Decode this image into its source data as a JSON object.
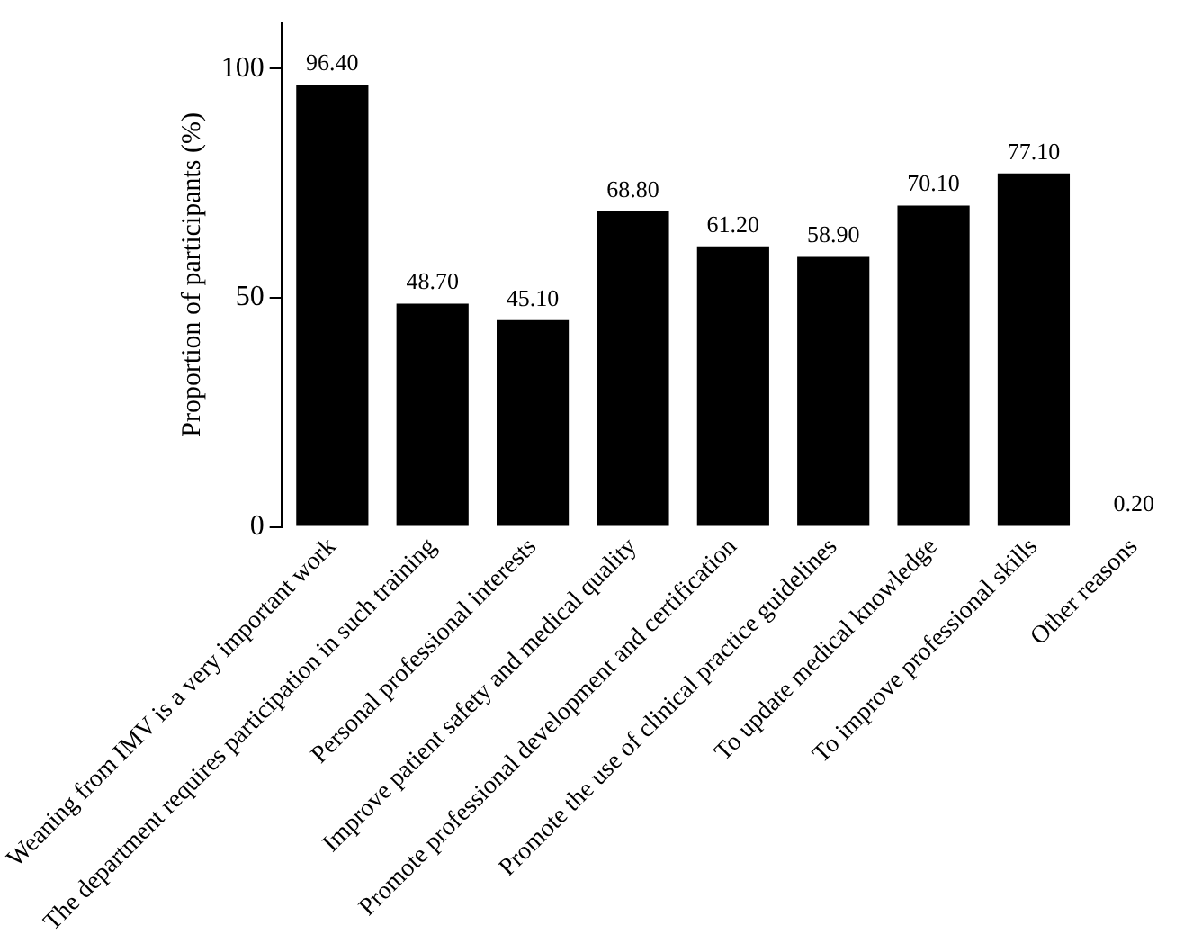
{
  "chart_data": {
    "type": "bar",
    "ylabel": "Proportion of participants (%)",
    "categories": [
      "Weaning from IMV is a very important work",
      "The department requires participation in such training",
      "Personal professional interests",
      "Improve patient safety and medical quality",
      "Promote professional development and certification",
      "Promote the use of clinical practice guidelines",
      "To update medical knowledge",
      "To improve professional skills",
      "Other reasons"
    ],
    "values": [
      96.4,
      48.7,
      45.1,
      68.8,
      61.2,
      58.9,
      70.1,
      77.1,
      0.2
    ],
    "value_labels": [
      "96.40",
      "48.70",
      "45.10",
      "68.80",
      "61.20",
      "58.90",
      "70.10",
      "77.10",
      "0.20"
    ],
    "color": "#000000",
    "ylim": [
      0,
      110
    ],
    "yticks": [
      0,
      50,
      100
    ],
    "grid": false,
    "legend": false
  }
}
